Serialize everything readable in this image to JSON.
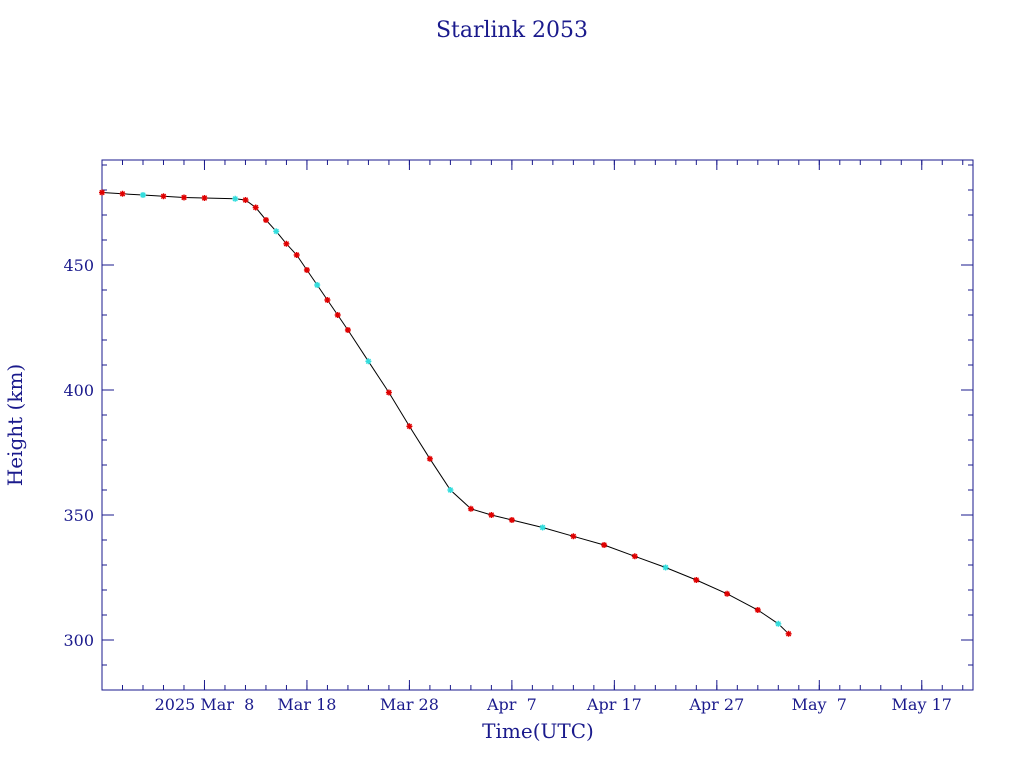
{
  "chart_data": {
    "type": "scatter",
    "title": "Starlink 2053",
    "xlabel": "Time(UTC)",
    "ylabel": "Height (km)",
    "x_tick_labels": [
      "2025 Mar  8",
      "Mar 18",
      "Mar 28",
      "Apr  7",
      "Apr 17",
      "Apr 27",
      "May  7",
      "May 17"
    ],
    "x_tick_dates": [
      "2025-03-08",
      "2025-03-18",
      "2025-03-28",
      "2025-04-07",
      "2025-04-17",
      "2025-04-27",
      "2025-05-07",
      "2025-05-17"
    ],
    "xlim": [
      "2025-02-26",
      "2025-05-22"
    ],
    "y_tick_labels": [
      "300",
      "350",
      "400",
      "450"
    ],
    "y_ticks": [
      300,
      350,
      400,
      450
    ],
    "ylim": [
      280,
      492
    ],
    "grid": false,
    "colors": {
      "text": "#1a1a8c",
      "axes": "#1a1a8c",
      "line": "#000000",
      "marker_primary": "#e00000",
      "marker_secondary": "#33dddd"
    },
    "series": [
      {
        "x": [
          "2025-02-26",
          "2025-02-28",
          "2025-03-02",
          "2025-03-04",
          "2025-03-06",
          "2025-03-08",
          "2025-03-11",
          "2025-03-12",
          "2025-03-13",
          "2025-03-14",
          "2025-03-15",
          "2025-03-16",
          "2025-03-17",
          "2025-03-18",
          "2025-03-19",
          "2025-03-20",
          "2025-03-21",
          "2025-03-22",
          "2025-03-24",
          "2025-03-26",
          "2025-03-28",
          "2025-03-30",
          "2025-04-01",
          "2025-04-03",
          "2025-04-05",
          "2025-04-07",
          "2025-04-10",
          "2025-04-13",
          "2025-04-16",
          "2025-04-19",
          "2025-04-22",
          "2025-04-25",
          "2025-04-28",
          "2025-05-01",
          "2025-05-03",
          "2025-05-04"
        ],
        "y": [
          479,
          478.5,
          478,
          477.5,
          477,
          476.8,
          476.5,
          476,
          473,
          468,
          463.5,
          458.5,
          454,
          448,
          442,
          436,
          430,
          424,
          411.5,
          399,
          385.5,
          372.5,
          360,
          352.5,
          350,
          348,
          345,
          341.5,
          338,
          333.5,
          329,
          324,
          318.5,
          312,
          306.5,
          302.5
        ]
      }
    ]
  }
}
